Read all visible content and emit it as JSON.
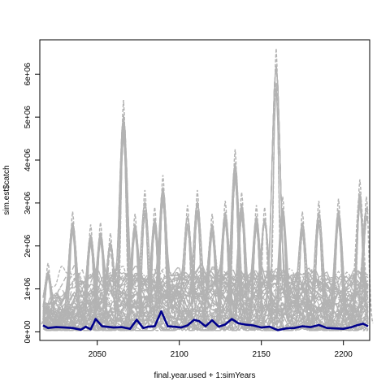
{
  "chart_data": {
    "type": "line",
    "xlabel": "final.year.used + 1:simYears",
    "ylabel": "sim.est$catch",
    "xlim": [
      2015,
      2216
    ],
    "ylim": [
      -200000,
      6800000
    ],
    "x_start": 2017,
    "x_end": 2215,
    "x_ticks": [
      2050,
      2100,
      2150,
      2200
    ],
    "y_ticks": [
      0,
      1000000,
      2000000,
      3000000,
      4000000,
      5000000,
      6000000
    ],
    "y_tick_labels": [
      "0e+00",
      "1e+06",
      "2e+06",
      "3e+06",
      "4e+06",
      "5e+06",
      "6e+06"
    ],
    "grid": false,
    "legend": "none",
    "simulation_count": 60,
    "simulation_color": "#b3b3b3",
    "median_color": "#00008b",
    "simulation_peaks": [
      {
        "x": 2020,
        "y": 1450000
      },
      {
        "x": 2035,
        "y": 2650000
      },
      {
        "x": 2046,
        "y": 2350000
      },
      {
        "x": 2052,
        "y": 2400000
      },
      {
        "x": 2058,
        "y": 2150000
      },
      {
        "x": 2066,
        "y": 5250000
      },
      {
        "x": 2073,
        "y": 2600000
      },
      {
        "x": 2079,
        "y": 3150000
      },
      {
        "x": 2085,
        "y": 2750000
      },
      {
        "x": 2090,
        "y": 3500000
      },
      {
        "x": 2105,
        "y": 2800000
      },
      {
        "x": 2111,
        "y": 3150000
      },
      {
        "x": 2120,
        "y": 2600000
      },
      {
        "x": 2128,
        "y": 2900000
      },
      {
        "x": 2134,
        "y": 4100000
      },
      {
        "x": 2138,
        "y": 3100000
      },
      {
        "x": 2147,
        "y": 2800000
      },
      {
        "x": 2152,
        "y": 2750000
      },
      {
        "x": 2159,
        "y": 6450000
      },
      {
        "x": 2163,
        "y": 3000000
      },
      {
        "x": 2175,
        "y": 2650000
      },
      {
        "x": 2185,
        "y": 2900000
      },
      {
        "x": 2197,
        "y": 2950000
      },
      {
        "x": 2210,
        "y": 3400000
      },
      {
        "x": 2214,
        "y": 3000000
      }
    ],
    "median_series": {
      "x": [
        2017,
        2020,
        2025,
        2030,
        2035,
        2040,
        2043,
        2046,
        2049,
        2053,
        2060,
        2065,
        2070,
        2074,
        2078,
        2081,
        2085,
        2089,
        2093,
        2097,
        2101,
        2105,
        2109,
        2112,
        2116,
        2120,
        2124,
        2128,
        2132,
        2136,
        2140,
        2145,
        2150,
        2155,
        2160,
        2165,
        2170,
        2175,
        2180,
        2185,
        2190,
        2195,
        2200,
        2205,
        2208,
        2212,
        2215
      ],
      "y": [
        150000,
        90000,
        110000,
        100000,
        90000,
        50000,
        120000,
        60000,
        300000,
        130000,
        100000,
        110000,
        70000,
        280000,
        90000,
        120000,
        130000,
        480000,
        130000,
        120000,
        100000,
        150000,
        280000,
        250000,
        130000,
        270000,
        120000,
        170000,
        300000,
        200000,
        170000,
        150000,
        100000,
        120000,
        40000,
        80000,
        90000,
        130000,
        110000,
        160000,
        90000,
        80000,
        70000,
        110000,
        150000,
        190000,
        130000
      ]
    }
  }
}
